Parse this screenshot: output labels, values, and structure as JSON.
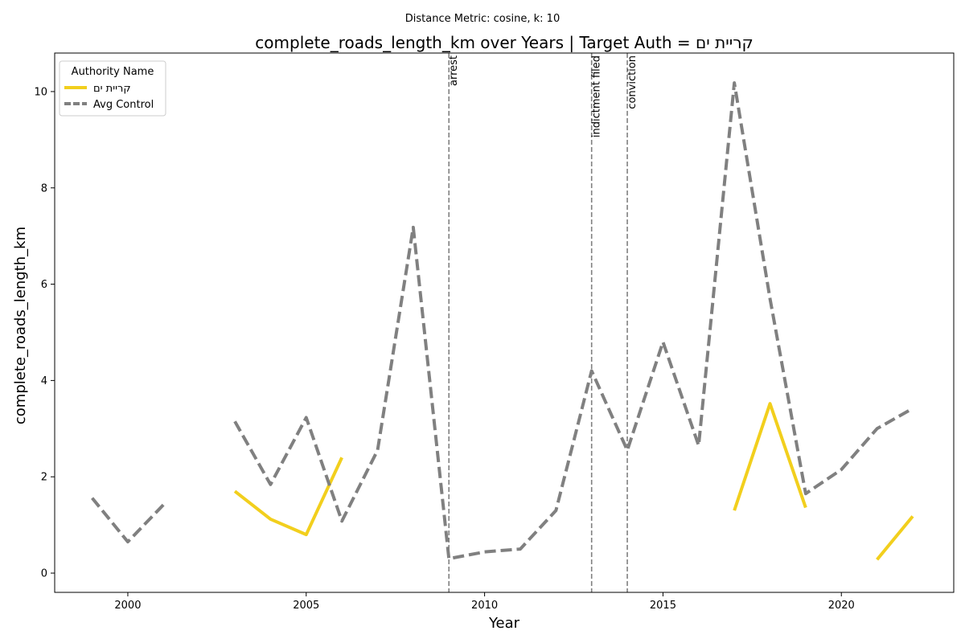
{
  "chart_data": {
    "type": "line",
    "suptitle": "Distance Metric: cosine, k: 10",
    "title": "complete_roads_length_km over Years | Target Auth = קריית ים",
    "xlabel": "Year",
    "ylabel": "complete_roads_length_km",
    "xlim": [
      1997.95,
      2023.15
    ],
    "ylim": [
      -0.4,
      10.8
    ],
    "xticks": [
      2000,
      2005,
      2010,
      2015,
      2020
    ],
    "yticks": [
      0,
      2,
      4,
      6,
      8,
      10
    ],
    "grid": false,
    "legend": {
      "title": "Authority Name",
      "position": "top-left"
    },
    "series": [
      {
        "name": "קריית ים",
        "color": "#f2cf1d",
        "dash": "solid",
        "points": [
          [
            2003,
            1.7
          ],
          [
            2004,
            1.12
          ],
          [
            2005,
            0.8
          ],
          [
            2006,
            2.4
          ],
          [
            2017,
            1.3
          ],
          [
            2018,
            3.52
          ],
          [
            2019,
            1.36
          ],
          [
            2021,
            0.28
          ],
          [
            2022,
            1.18
          ]
        ]
      },
      {
        "name": "Avg Control",
        "color": "#808080",
        "dash": "dashed",
        "points": [
          [
            1999,
            1.56
          ],
          [
            2000,
            0.65
          ],
          [
            2001,
            1.42
          ],
          [
            2003,
            3.15
          ],
          [
            2004,
            1.84
          ],
          [
            2005,
            3.23
          ],
          [
            2006,
            1.08
          ],
          [
            2007,
            2.55
          ],
          [
            2008,
            7.18
          ],
          [
            2009,
            0.3
          ],
          [
            2010,
            0.44
          ],
          [
            2011,
            0.5
          ],
          [
            2012,
            1.3
          ],
          [
            2013,
            4.2
          ],
          [
            2014,
            2.55
          ],
          [
            2015,
            4.8
          ],
          [
            2016,
            2.65
          ],
          [
            2017,
            10.18
          ],
          [
            2018,
            5.7
          ],
          [
            2019,
            1.65
          ],
          [
            2020,
            2.15
          ],
          [
            2021,
            3.0
          ],
          [
            2022,
            3.42
          ]
        ]
      }
    ],
    "events": [
      {
        "x": 2009,
        "label": "arrest"
      },
      {
        "x": 2013,
        "label": "indictment filed"
      },
      {
        "x": 2014,
        "label": "conviction"
      }
    ]
  }
}
